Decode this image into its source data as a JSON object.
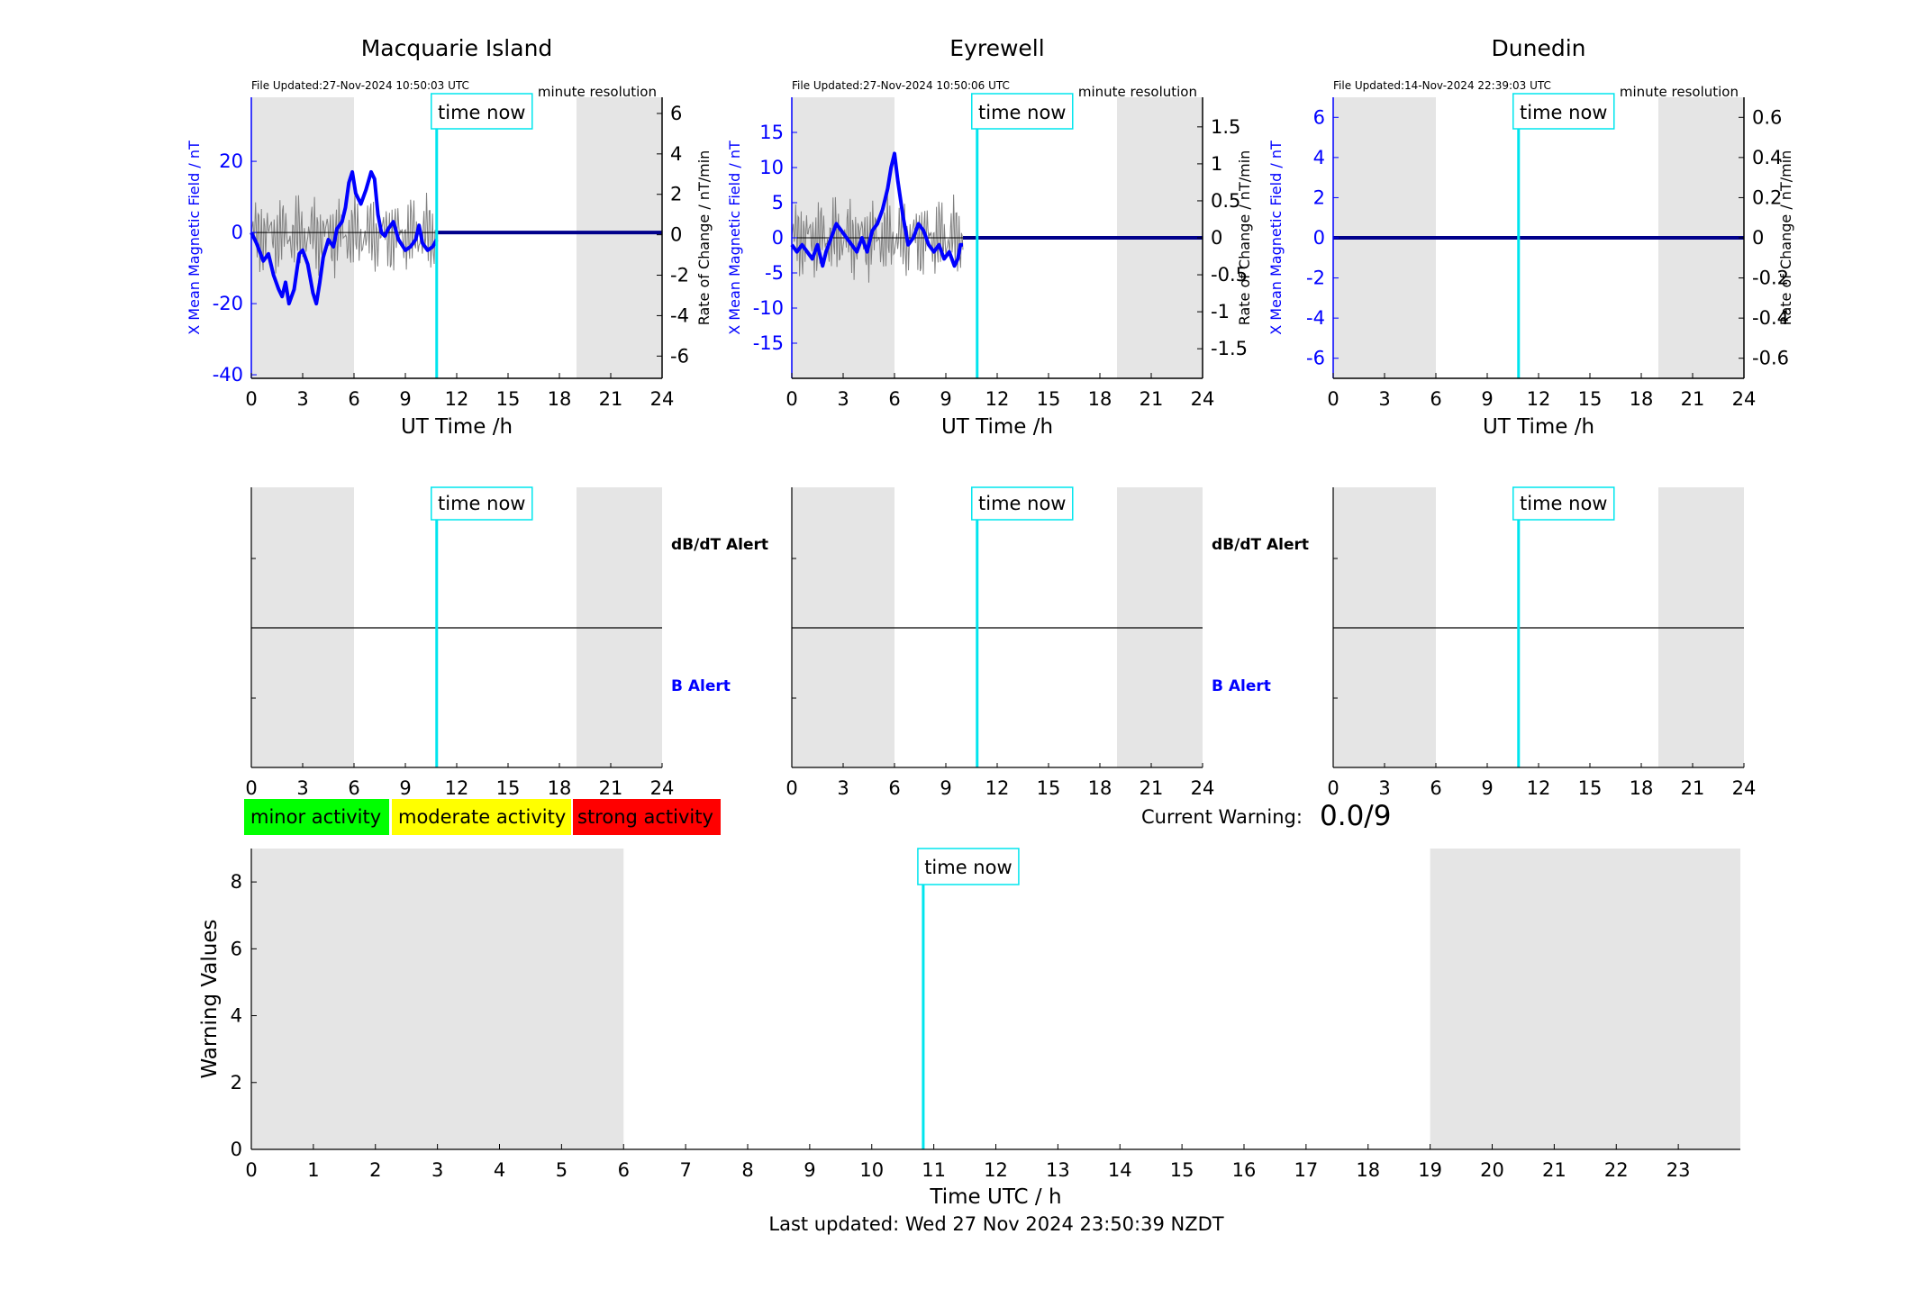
{
  "stations": [
    {
      "title": "Macquarie Island",
      "file_updated": "File Updated:27-Nov-2024 10:50:03 UTC",
      "resolution": "minute resolution",
      "time_now_label": "time now",
      "xlabel": "UT Time /h",
      "ylabel_left": "X Mean Magnetic Field / nT",
      "ylabel_right": "Rate of Change / nT/min",
      "left_ylim": [
        -41,
        38
      ],
      "left_ticks": [
        "-40",
        "-20",
        "0",
        "20"
      ],
      "left_tick_values": [
        -40,
        -20,
        0,
        20
      ],
      "right_ylim": [
        -7.1,
        6.8
      ],
      "right_ticks": [
        "-6",
        "-4",
        "-2",
        "0",
        "2",
        "4",
        "6"
      ],
      "right_tick_values": [
        -6,
        -4,
        -2,
        0,
        2,
        4,
        6
      ],
      "xticks": [
        "0",
        "3",
        "6",
        "9",
        "12",
        "15",
        "18",
        "21",
        "24"
      ],
      "xlim": [
        0,
        24
      ],
      "night_bands": [
        [
          0,
          6
        ],
        [
          19,
          24
        ]
      ],
      "time_now": 10.83,
      "data_end": 10.83,
      "x_mean_field": [
        [
          0,
          0
        ],
        [
          0.3,
          -3
        ],
        [
          0.7,
          -8
        ],
        [
          1.0,
          -6
        ],
        [
          1.3,
          -12
        ],
        [
          1.6,
          -16
        ],
        [
          1.8,
          -18
        ],
        [
          2.0,
          -14
        ],
        [
          2.2,
          -20
        ],
        [
          2.5,
          -16
        ],
        [
          2.8,
          -6
        ],
        [
          3.0,
          -5
        ],
        [
          3.3,
          -9
        ],
        [
          3.6,
          -17
        ],
        [
          3.8,
          -20
        ],
        [
          4.0,
          -14
        ],
        [
          4.2,
          -7
        ],
        [
          4.5,
          -2
        ],
        [
          4.8,
          -4
        ],
        [
          5.0,
          1
        ],
        [
          5.3,
          3
        ],
        [
          5.5,
          7
        ],
        [
          5.7,
          14
        ],
        [
          5.9,
          17
        ],
        [
          6.1,
          11
        ],
        [
          6.4,
          8
        ],
        [
          6.7,
          12
        ],
        [
          7.0,
          17
        ],
        [
          7.2,
          15
        ],
        [
          7.4,
          5
        ],
        [
          7.6,
          0
        ],
        [
          7.8,
          -1
        ],
        [
          8.0,
          1
        ],
        [
          8.3,
          3
        ],
        [
          8.6,
          -2
        ],
        [
          9.0,
          -5
        ],
        [
          9.3,
          -4
        ],
        [
          9.6,
          -2
        ],
        [
          9.8,
          2
        ],
        [
          10.0,
          -3
        ],
        [
          10.3,
          -5
        ],
        [
          10.6,
          -4
        ],
        [
          10.83,
          -2
        ]
      ],
      "rate_amplitude": 1.6
    },
    {
      "title": "Eyrewell",
      "file_updated": "File Updated:27-Nov-2024 10:50:06 UTC",
      "resolution": "minute resolution",
      "time_now_label": "time now",
      "xlabel": "UT Time /h",
      "ylabel_left": "X Mean Magnetic Field / nT",
      "ylabel_right": "Rate of Change / nT/min",
      "left_ylim": [
        -20,
        20
      ],
      "left_ticks": [
        "-15",
        "-10",
        "-5",
        "0",
        "5",
        "10",
        "15"
      ],
      "left_tick_values": [
        -15,
        -10,
        -5,
        0,
        5,
        10,
        15
      ],
      "right_ylim": [
        -1.9,
        1.9
      ],
      "right_ticks": [
        "-1.5",
        "-1",
        "-0.5",
        "0",
        "0.5",
        "1",
        "1.5"
      ],
      "right_tick_values": [
        -1.5,
        -1,
        -0.5,
        0,
        0.5,
        1,
        1.5
      ],
      "xticks": [
        "0",
        "3",
        "6",
        "9",
        "12",
        "15",
        "18",
        "21",
        "24"
      ],
      "xlim": [
        0,
        24
      ],
      "night_bands": [
        [
          0,
          6
        ],
        [
          19,
          24
        ]
      ],
      "time_now": 10.83,
      "data_end": 10.0,
      "x_mean_field": [
        [
          0,
          -1
        ],
        [
          0.3,
          -2
        ],
        [
          0.6,
          -1
        ],
        [
          0.9,
          -2
        ],
        [
          1.2,
          -3
        ],
        [
          1.5,
          -1
        ],
        [
          1.8,
          -4
        ],
        [
          2.0,
          -2
        ],
        [
          2.3,
          0
        ],
        [
          2.6,
          2
        ],
        [
          2.9,
          1
        ],
        [
          3.2,
          0
        ],
        [
          3.5,
          -1
        ],
        [
          3.8,
          -2
        ],
        [
          4.1,
          0
        ],
        [
          4.4,
          -2
        ],
        [
          4.7,
          1
        ],
        [
          5.0,
          2
        ],
        [
          5.3,
          4
        ],
        [
          5.6,
          7
        ],
        [
          5.8,
          10
        ],
        [
          6.0,
          12
        ],
        [
          6.2,
          8
        ],
        [
          6.5,
          3
        ],
        [
          6.8,
          -1
        ],
        [
          7.1,
          0
        ],
        [
          7.4,
          2
        ],
        [
          7.7,
          1
        ],
        [
          8.0,
          -1
        ],
        [
          8.3,
          -2
        ],
        [
          8.6,
          -1
        ],
        [
          8.9,
          -3
        ],
        [
          9.2,
          -2
        ],
        [
          9.5,
          -4
        ],
        [
          9.7,
          -3
        ],
        [
          9.85,
          -1
        ],
        [
          10.0,
          -1
        ]
      ],
      "rate_amplitude": 0.45
    },
    {
      "title": "Dunedin",
      "file_updated": "File Updated:14-Nov-2024 22:39:03 UTC",
      "resolution": "minute resolution",
      "time_now_label": "time now",
      "xlabel": "UT Time /h",
      "ylabel_left": "X Mean Magnetic Field / nT",
      "ylabel_right": "Rate of Change / nT/min",
      "left_ylim": [
        -7,
        7
      ],
      "left_ticks": [
        "-6",
        "-4",
        "-2",
        "0",
        "2",
        "4",
        "6"
      ],
      "left_tick_values": [
        -6,
        -4,
        -2,
        0,
        2,
        4,
        6
      ],
      "right_ylim": [
        -0.7,
        0.7
      ],
      "right_ticks": [
        "-0.6",
        "-0.4",
        "-0.2",
        "0",
        "0.2",
        "0.4",
        "0.6"
      ],
      "right_tick_values": [
        -0.6,
        -0.4,
        -0.2,
        0,
        0.2,
        0.4,
        0.6
      ],
      "xticks": [
        "0",
        "3",
        "6",
        "9",
        "12",
        "15",
        "18",
        "21",
        "24"
      ],
      "xlim": [
        0,
        24
      ],
      "night_bands": [
        [
          0,
          6
        ],
        [
          19,
          24
        ]
      ],
      "time_now": 10.83,
      "data_end": 0,
      "x_mean_field": [],
      "rate_amplitude": 0
    }
  ],
  "alert_panels": {
    "dbdt_label": "dB/dT Alert",
    "b_label": "B Alert",
    "time_now_label": "time now",
    "xticks": [
      "0",
      "3",
      "6",
      "9",
      "12",
      "15",
      "18",
      "21",
      "24"
    ]
  },
  "legend": {
    "minor": "minor activity",
    "moderate": "moderate activity",
    "strong": "strong activity",
    "colors": {
      "minor": "#00ff00",
      "moderate": "#ffff00",
      "strong": "#ff0000"
    }
  },
  "current_warning": {
    "label": "Current Warning:",
    "value": "0.0/9"
  },
  "warning_chart": {
    "ylabel": "Warning Values",
    "xlabel": "Time UTC / h",
    "time_now_label": "time now",
    "ylim": [
      0,
      9
    ],
    "yticks": [
      "0",
      "2",
      "4",
      "6",
      "8"
    ],
    "xticks": [
      "0",
      "1",
      "2",
      "3",
      "4",
      "5",
      "6",
      "7",
      "8",
      "9",
      "10",
      "11",
      "12",
      "13",
      "14",
      "15",
      "16",
      "17",
      "18",
      "19",
      "20",
      "21",
      "22",
      "23"
    ],
    "xlim": [
      0,
      24
    ],
    "night_bands": [
      [
        0,
        6
      ],
      [
        19,
        24
      ]
    ],
    "time_now": 10.83
  },
  "footer": "Last updated: Wed 27 Nov 2024 23:50:39 NZDT",
  "colors": {
    "field": "#0000ff",
    "time_now": "#00e5ee",
    "night": "#e5e5e5",
    "rate": "#808080"
  },
  "chart_data": [
    {
      "type": "line",
      "title": "Macquarie Island",
      "xlabel": "UT Time /h",
      "ylabel": "X Mean Magnetic Field / nT",
      "xlim": [
        0,
        24
      ],
      "ylim": [
        -41,
        38
      ]
    },
    {
      "type": "line",
      "title": "Eyrewell",
      "xlabel": "UT Time /h",
      "ylabel": "X Mean Magnetic Field / nT",
      "xlim": [
        0,
        24
      ],
      "ylim": [
        -20,
        20
      ]
    },
    {
      "type": "line",
      "title": "Dunedin",
      "xlabel": "UT Time /h",
      "ylabel": "X Mean Magnetic Field / nT",
      "xlim": [
        0,
        24
      ],
      "ylim": [
        -7,
        7
      ]
    },
    {
      "type": "bar",
      "xlabel": "Time UTC / h",
      "ylabel": "Warning Values",
      "xlim": [
        0,
        24
      ],
      "ylim": [
        0,
        9
      ],
      "values": []
    }
  ]
}
